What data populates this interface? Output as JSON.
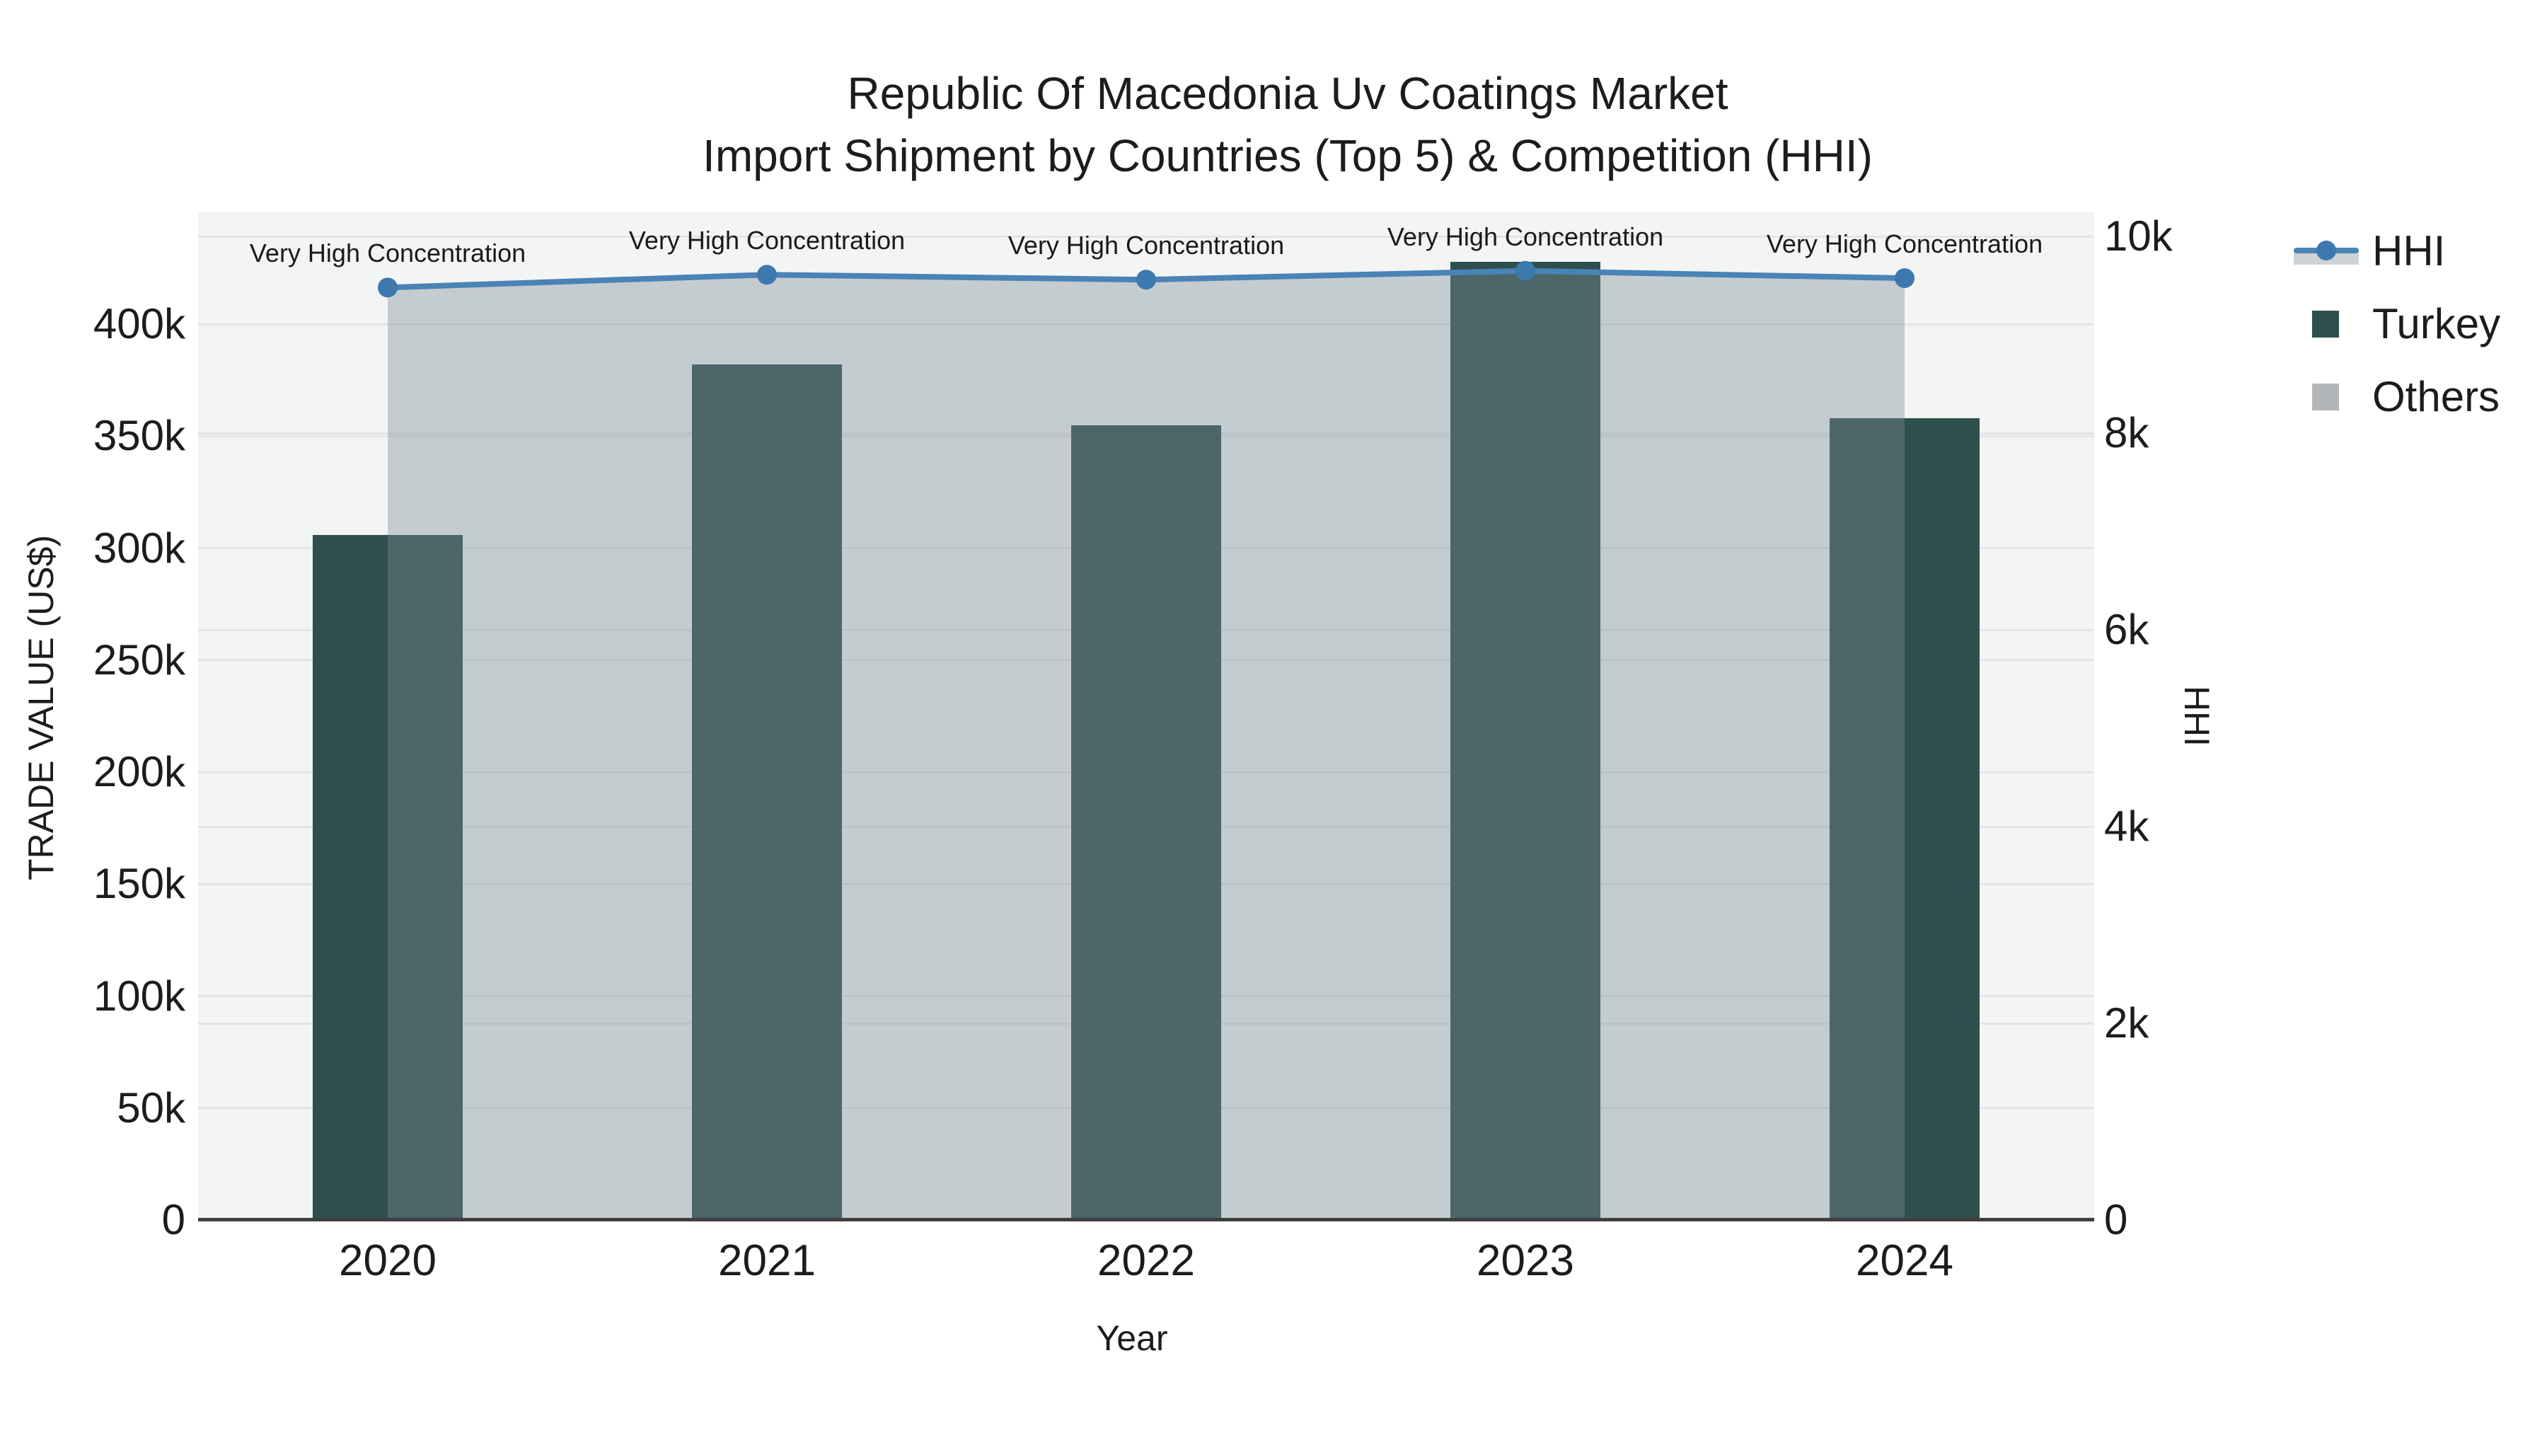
{
  "title": {
    "line1": "Republic Of Macedonia Uv Coatings Market",
    "line2": "Import Shipment by Countries (Top 5) & Competition (HHI)"
  },
  "axes": {
    "x": {
      "title": "Year",
      "categories": [
        "2020",
        "2021",
        "2022",
        "2023",
        "2024"
      ]
    },
    "y_left": {
      "title": "TRADE VALUE (US$)",
      "tick_labels": [
        "0",
        "50k",
        "100k",
        "150k",
        "200k",
        "250k",
        "300k",
        "350k",
        "400k"
      ],
      "tick_values": [
        0,
        50000,
        100000,
        150000,
        200000,
        250000,
        300000,
        350000,
        400000
      ],
      "range": [
        0,
        450000
      ]
    },
    "y_right": {
      "title": "HHI",
      "tick_labels": [
        "0",
        "2k",
        "4k",
        "6k",
        "8k",
        "10k"
      ],
      "tick_values": [
        0,
        2000,
        4000,
        6000,
        8000,
        10000
      ],
      "range": [
        0,
        10245
      ]
    }
  },
  "chart_data": {
    "type": "bar+line combo",
    "categories": [
      "2020",
      "2021",
      "2022",
      "2023",
      "2024"
    ],
    "series": [
      {
        "name": "Turkey",
        "type": "bar",
        "axis": "left",
        "color": "#2f4f4f",
        "values": [
          306000,
          382000,
          355000,
          428000,
          358000
        ]
      },
      {
        "name": "Others",
        "type": "bar",
        "axis": "left",
        "color": "#b3b6b9",
        "values": [
          0,
          0,
          0,
          0,
          0
        ]
      },
      {
        "name": "HHI",
        "type": "line+markers+area",
        "axis": "right",
        "color": "#4a83b5",
        "marker_color": "#3d79ae",
        "fill_color": "rgba(124,139,150,0.38)",
        "values": [
          9480,
          9610,
          9560,
          9650,
          9575
        ]
      }
    ],
    "annotations": [
      {
        "text": "Very High Concentration",
        "category": "2020"
      },
      {
        "text": "Very High Concentration",
        "category": "2021"
      },
      {
        "text": "Very High Concentration",
        "category": "2022"
      },
      {
        "text": "Very High Concentration",
        "category": "2023"
      },
      {
        "text": "Very High Concentration",
        "category": "2024"
      }
    ],
    "xlabel": "Year",
    "ylabel_left": "TRADE VALUE (US$)",
    "ylabel_right": "HHI",
    "grid": true,
    "legend_position": "top-right"
  },
  "legend": {
    "items": [
      {
        "label": "HHI",
        "symbol": "line-marker-area"
      },
      {
        "label": "Turkey",
        "symbol": "square"
      },
      {
        "label": "Others",
        "symbol": "square"
      }
    ]
  },
  "colors": {
    "plot_background": "#f3f4f4",
    "gridline": "#e2e4e7",
    "axis_line": "#3f3f3f",
    "bar_turkey": "#2f4f4f",
    "bar_others": "#b3b6b9",
    "hhi_line": "#4a83b5",
    "hhi_marker": "#3d79ae",
    "hhi_area": "rgba(124,139,150,0.38)",
    "text": "#1c1c1c"
  }
}
